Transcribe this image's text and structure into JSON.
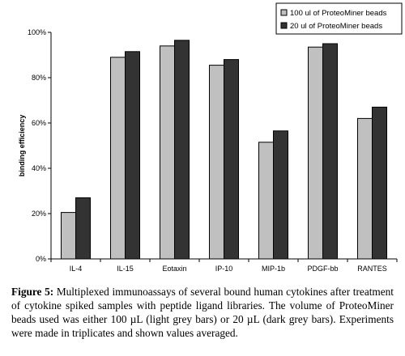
{
  "chart_data": {
    "type": "bar",
    "categories": [
      "IL-4",
      "IL-15",
      "Eotaxin",
      "IP-10",
      "MIP-1b",
      "PDGF-bb",
      "RANTES"
    ],
    "series": [
      {
        "name": "100 ul of ProteoMiner beads",
        "color": "#c0c0c0",
        "values": [
          20.5,
          89,
          94,
          85.5,
          51.5,
          93.5,
          62
        ]
      },
      {
        "name": "20 ul of ProteoMiner beads",
        "color": "#333333",
        "values": [
          27,
          91.5,
          96.5,
          88,
          56.5,
          95,
          67
        ]
      }
    ],
    "ylabel": "binding efficiency",
    "xlabel": "",
    "ylim": [
      0,
      100
    ],
    "yticks": [
      "0%",
      "20%",
      "40%",
      "60%",
      "80%",
      "100%"
    ],
    "legend_position": "top-right",
    "grid": false
  },
  "caption": {
    "label": "Figure 5:",
    "text": "Multiplexed immunoassays of several bound human cytokines after treatment of cytokine spiked samples with peptide ligand libraries. The volume of ProteoMiner beads used was either 100 µL (light grey bars) or 20 µL (dark grey bars). Experiments were made in triplicates and shown values averaged."
  }
}
